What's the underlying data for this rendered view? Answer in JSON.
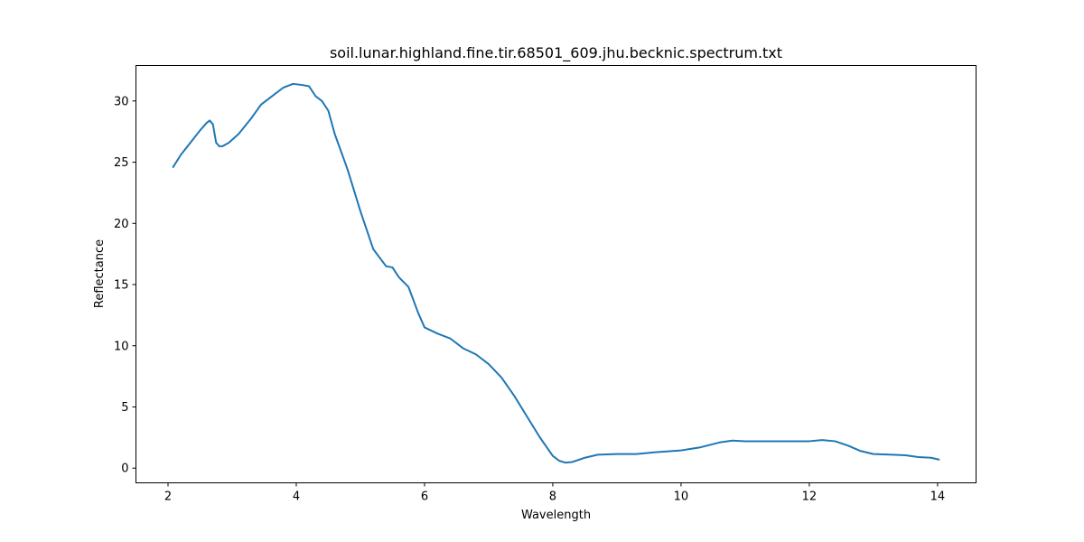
{
  "chart_data": {
    "type": "line",
    "title": "soil.lunar.highland.fine.tir.68501_609.jhu.becknic.spectrum.txt",
    "xlabel": "Wavelength",
    "ylabel": "Reflectance",
    "xlim": [
      1.5,
      14.6
    ],
    "ylim": [
      -1.2,
      32.9
    ],
    "xticks": [
      2,
      4,
      6,
      8,
      10,
      12,
      14
    ],
    "yticks": [
      0,
      5,
      10,
      15,
      20,
      25,
      30
    ],
    "grid": false,
    "series": [
      {
        "color": "#1f77b4",
        "x": [
          2.08,
          2.2,
          2.35,
          2.5,
          2.6,
          2.65,
          2.7,
          2.75,
          2.8,
          2.85,
          2.95,
          3.1,
          3.3,
          3.45,
          3.6,
          3.8,
          3.95,
          4.1,
          4.2,
          4.3,
          4.4,
          4.5,
          4.6,
          4.8,
          5.0,
          5.2,
          5.4,
          5.5,
          5.6,
          5.75,
          5.9,
          6.0,
          6.2,
          6.4,
          6.6,
          6.8,
          7.0,
          7.2,
          7.4,
          7.6,
          7.8,
          8.0,
          8.1,
          8.2,
          8.3,
          8.5,
          8.7,
          9.0,
          9.3,
          9.6,
          10.0,
          10.3,
          10.6,
          10.8,
          11.0,
          11.3,
          11.6,
          12.0,
          12.2,
          12.4,
          12.6,
          12.8,
          13.0,
          13.3,
          13.5,
          13.7,
          13.9,
          14.02
        ],
        "values": [
          24.6,
          25.6,
          26.6,
          27.6,
          28.2,
          28.4,
          28.1,
          26.6,
          26.3,
          26.3,
          26.6,
          27.3,
          28.6,
          29.7,
          30.3,
          31.1,
          31.4,
          31.3,
          31.2,
          30.4,
          30.0,
          29.2,
          27.3,
          24.4,
          21.0,
          17.9,
          16.5,
          16.4,
          15.6,
          14.8,
          12.7,
          11.5,
          11.0,
          10.6,
          9.8,
          9.3,
          8.5,
          7.4,
          5.9,
          4.2,
          2.5,
          1.0,
          0.6,
          0.45,
          0.5,
          0.85,
          1.1,
          1.15,
          1.15,
          1.3,
          1.45,
          1.7,
          2.1,
          2.25,
          2.2,
          2.2,
          2.2,
          2.2,
          2.3,
          2.2,
          1.85,
          1.4,
          1.15,
          1.1,
          1.05,
          0.9,
          0.85,
          0.7
        ]
      }
    ]
  }
}
